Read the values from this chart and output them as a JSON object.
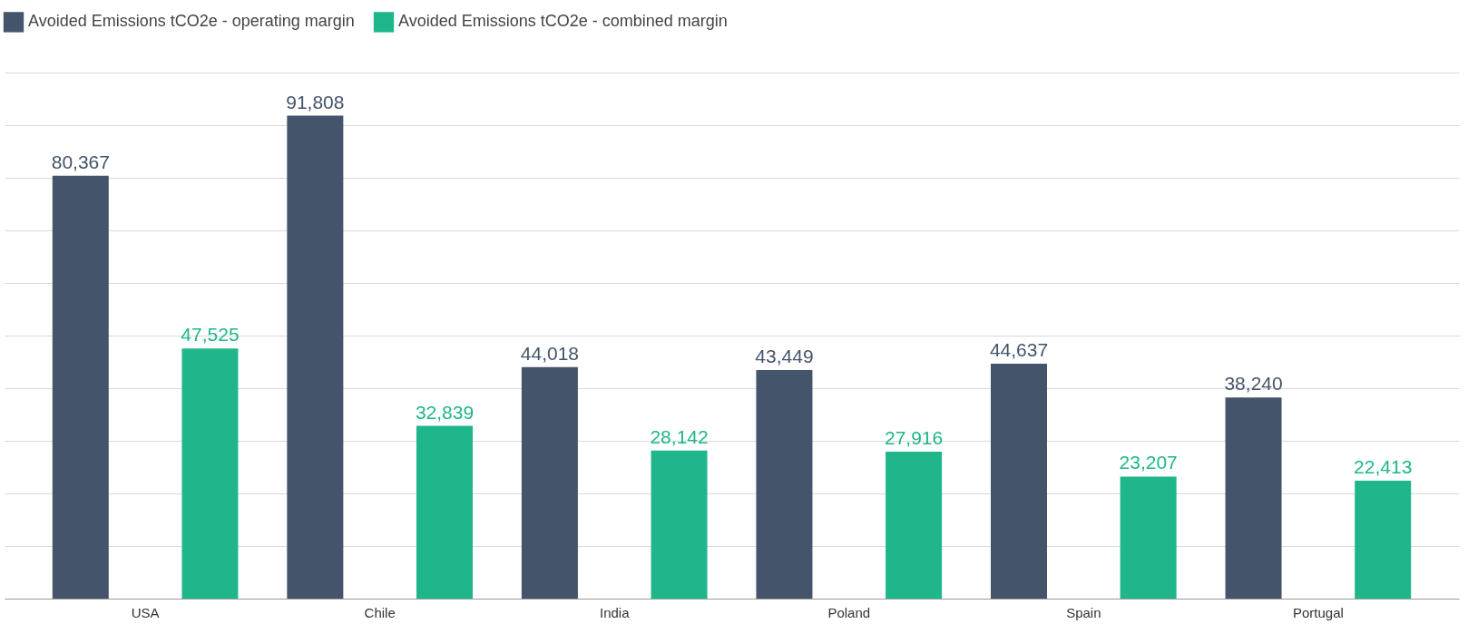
{
  "chart_data": {
    "type": "bar",
    "categories": [
      "USA",
      "Chile",
      "India",
      "Poland",
      "Spain",
      "Portugal"
    ],
    "series": [
      {
        "name": "Avoided Emissions tCO2e - operating margin",
        "color": "#44546a",
        "values": [
          80367,
          91808,
          44018,
          43449,
          44637,
          38240
        ],
        "value_labels": [
          "80,367",
          "91,808",
          "44,018",
          "43,449",
          "44,637",
          "38,240"
        ]
      },
      {
        "name": "Avoided Emissions tCO2e - combined margin",
        "color": "#1eb68a",
        "values": [
          47525,
          32839,
          28142,
          27916,
          23207,
          22413
        ],
        "value_labels": [
          "47,525",
          "32,839",
          "28,142",
          "27,916",
          "23,207",
          "22,413"
        ]
      }
    ],
    "tick_labels": "x",
    "grid": "y",
    "legend": "top left"
  }
}
